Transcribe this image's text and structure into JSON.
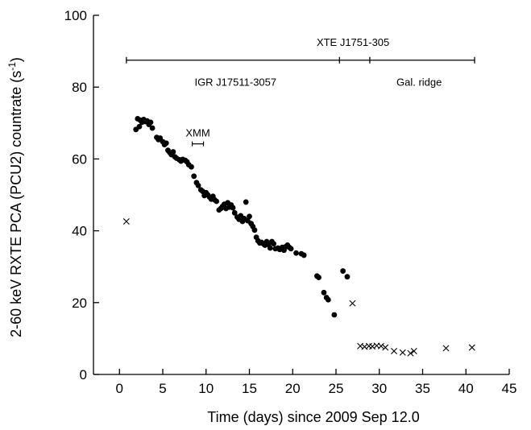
{
  "chart_data": {
    "type": "scatter",
    "xlabel": "Time (days) since 2009 Sep 12.0",
    "ylabel": "2-60 keV RXTE PCA (PCU2) countrate (s-1)",
    "ylabel_main": "2-60 keV RXTE PCA (PCU2) countrate (s",
    "ylabel_sup": "-1",
    "ylabel_close": ")",
    "xlim": [
      -3,
      45
    ],
    "ylim": [
      0,
      100
    ],
    "xticks": [
      0,
      5,
      10,
      15,
      20,
      25,
      30,
      35,
      40,
      45
    ],
    "yticks": [
      0,
      20,
      40,
      60,
      80,
      100
    ],
    "grid": false,
    "series": [
      {
        "marker": "dot",
        "points": [
          [
            1.9,
            68.2
          ],
          [
            2.1,
            71.2
          ],
          [
            2.3,
            69.0
          ],
          [
            2.4,
            70.8
          ],
          [
            2.6,
            70.2
          ],
          [
            2.8,
            71.0
          ],
          [
            3.0,
            70.4
          ],
          [
            3.2,
            70.6
          ],
          [
            3.4,
            69.6
          ],
          [
            3.6,
            70.2
          ],
          [
            3.8,
            68.6
          ],
          [
            4.3,
            66.0
          ],
          [
            4.5,
            65.4
          ],
          [
            4.7,
            65.8
          ],
          [
            5.0,
            64.8
          ],
          [
            5.2,
            64.0
          ],
          [
            5.4,
            64.4
          ],
          [
            5.6,
            62.4
          ],
          [
            5.8,
            61.8
          ],
          [
            6.0,
            61.2
          ],
          [
            6.2,
            62.0
          ],
          [
            6.4,
            60.6
          ],
          [
            6.6,
            60.2
          ],
          [
            6.9,
            59.8
          ],
          [
            7.1,
            59.4
          ],
          [
            7.3,
            59.9
          ],
          [
            7.6,
            59.6
          ],
          [
            7.8,
            59.2
          ],
          [
            8.0,
            58.4
          ],
          [
            8.3,
            57.8
          ],
          [
            8.6,
            55.2
          ],
          [
            8.9,
            53.4
          ],
          [
            9.1,
            52.6
          ],
          [
            9.4,
            51.4
          ],
          [
            9.6,
            51.0
          ],
          [
            9.8,
            49.8
          ],
          [
            10.0,
            50.6
          ],
          [
            10.2,
            50.0
          ],
          [
            10.4,
            49.4
          ],
          [
            10.6,
            48.8
          ],
          [
            10.8,
            49.6
          ],
          [
            11.0,
            48.6
          ],
          [
            11.2,
            48.2
          ],
          [
            11.5,
            45.8
          ],
          [
            11.7,
            46.2
          ],
          [
            11.9,
            46.8
          ],
          [
            12.1,
            47.4
          ],
          [
            12.3,
            46.2
          ],
          [
            12.5,
            47.8
          ],
          [
            12.7,
            46.6
          ],
          [
            12.9,
            47.2
          ],
          [
            13.1,
            46.4
          ],
          [
            13.3,
            45.0
          ],
          [
            13.6,
            43.8
          ],
          [
            13.8,
            43.2
          ],
          [
            14.0,
            44.2
          ],
          [
            14.2,
            42.6
          ],
          [
            14.4,
            43.4
          ],
          [
            14.6,
            48.0
          ],
          [
            14.8,
            42.8
          ],
          [
            15.0,
            44.0
          ],
          [
            15.2,
            42.0
          ],
          [
            15.4,
            41.2
          ],
          [
            15.6,
            40.2
          ],
          [
            15.8,
            38.2
          ],
          [
            16.0,
            37.2
          ],
          [
            16.2,
            36.6
          ],
          [
            16.4,
            36.8
          ],
          [
            16.6,
            36.4
          ],
          [
            16.8,
            36.0
          ],
          [
            17.0,
            37.0
          ],
          [
            17.2,
            36.2
          ],
          [
            17.4,
            35.2
          ],
          [
            17.6,
            37.0
          ],
          [
            17.8,
            36.4
          ],
          [
            18.0,
            35.0
          ],
          [
            18.3,
            35.2
          ],
          [
            18.5,
            34.8
          ],
          [
            18.8,
            35.4
          ],
          [
            19.0,
            34.6
          ],
          [
            19.2,
            35.6
          ],
          [
            19.4,
            36.0
          ],
          [
            19.6,
            35.4
          ],
          [
            19.8,
            35.0
          ],
          [
            20.4,
            33.8
          ],
          [
            21.0,
            33.6
          ],
          [
            21.3,
            33.2
          ],
          [
            22.8,
            27.4
          ],
          [
            23.0,
            27.0
          ],
          [
            23.6,
            22.8
          ],
          [
            23.9,
            21.4
          ],
          [
            24.1,
            20.8
          ],
          [
            24.8,
            16.6
          ],
          [
            25.8,
            28.8
          ],
          [
            26.3,
            27.2
          ]
        ]
      },
      {
        "marker": "cross",
        "points": [
          [
            0.8,
            42.6
          ],
          [
            26.9,
            19.8
          ],
          [
            27.8,
            7.9
          ],
          [
            28.3,
            7.7
          ],
          [
            28.8,
            7.9
          ],
          [
            29.2,
            7.8
          ],
          [
            29.7,
            8.0
          ],
          [
            30.2,
            7.9
          ],
          [
            30.7,
            7.5
          ],
          [
            31.7,
            6.5
          ],
          [
            32.7,
            6.1
          ],
          [
            33.6,
            5.9
          ],
          [
            34.0,
            6.5
          ],
          [
            37.7,
            7.3
          ],
          [
            40.7,
            7.5
          ]
        ]
      }
    ],
    "annotations": {
      "xte": {
        "label": "XTE J1751-305",
        "x_start": 0.8,
        "x_mid": 25.4,
        "x_mid2": 28.9,
        "x_end": 41.0,
        "y": 87.5
      },
      "igr": {
        "label": "IGR J17511-3057",
        "x_center": 13.4,
        "y": 81.5
      },
      "galridge": {
        "label": "Gal. ridge",
        "x_center": 34.6,
        "y": 81.5
      },
      "xmm": {
        "label": "XMM",
        "x_start": 8.4,
        "x_end": 9.7,
        "y": 64.2
      }
    }
  }
}
